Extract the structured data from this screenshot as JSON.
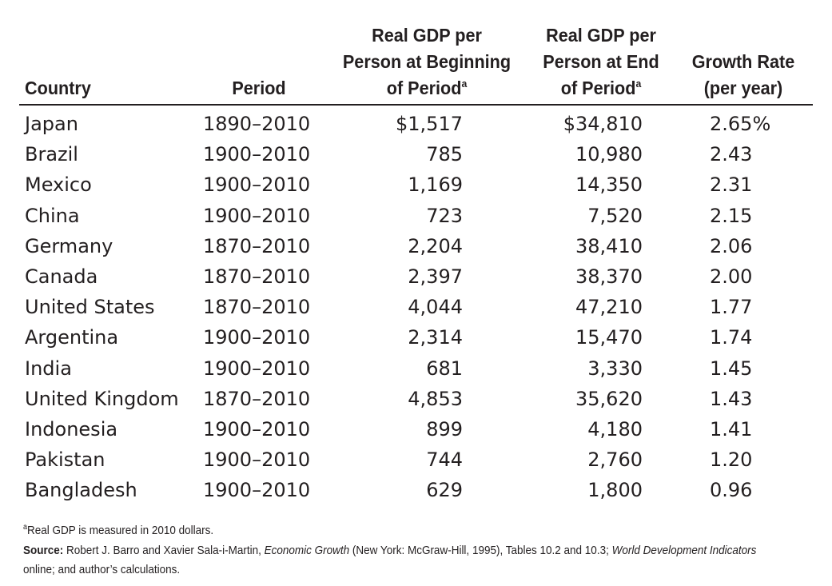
{
  "header": {
    "country": "Country",
    "period": "Period",
    "begin_line1": "Real GDP per",
    "begin_line2": "Person at Beginning",
    "begin_line3": "of Period",
    "begin_mark": "a",
    "end_line1": "Real GDP per",
    "end_line2": "Person at End",
    "end_line3": "of Period",
    "end_mark": "a",
    "rate_line1": "Growth Rate",
    "rate_line2": "(per year)"
  },
  "rows": [
    {
      "country": "Japan",
      "period": "1890–2010",
      "begin": "$1,517",
      "end": "$34,810",
      "rate": "2.65%"
    },
    {
      "country": "Brazil",
      "period": "1900–2010",
      "begin": "785",
      "end": "10,980",
      "rate": "2.43"
    },
    {
      "country": "Mexico",
      "period": "1900–2010",
      "begin": "1,169",
      "end": "14,350",
      "rate": "2.31"
    },
    {
      "country": "China",
      "period": "1900–2010",
      "begin": "723",
      "end": "7,520",
      "rate": "2.15"
    },
    {
      "country": "Germany",
      "period": "1870–2010",
      "begin": "2,204",
      "end": "38,410",
      "rate": "2.06"
    },
    {
      "country": "Canada",
      "period": "1870–2010",
      "begin": "2,397",
      "end": "38,370",
      "rate": "2.00"
    },
    {
      "country": "United States",
      "period": "1870–2010",
      "begin": "4,044",
      "end": "47,210",
      "rate": "1.77"
    },
    {
      "country": "Argentina",
      "period": "1900–2010",
      "begin": "2,314",
      "end": "15,470",
      "rate": "1.74"
    },
    {
      "country": "India",
      "period": "1900–2010",
      "begin": "681",
      "end": "3,330",
      "rate": "1.45"
    },
    {
      "country": "United Kingdom",
      "period": "1870–2010",
      "begin": "4,853",
      "end": "35,620",
      "rate": "1.43"
    },
    {
      "country": "Indonesia",
      "period": "1900–2010",
      "begin": "899",
      "end": "4,180",
      "rate": "1.41"
    },
    {
      "country": "Pakistan",
      "period": "1900–2010",
      "begin": "744",
      "end": "2,760",
      "rate": "1.20"
    },
    {
      "country": "Bangladesh",
      "period": "1900–2010",
      "begin": "629",
      "end": "1,800",
      "rate": "0.96"
    }
  ],
  "footnote": {
    "mark": "a",
    "text": "Real GDP is measured in 2010 dollars."
  },
  "source": {
    "label": "Source:",
    "part1": " Robert J. Barro and Xavier Sala-i-Martin, ",
    "book": "Economic Growth",
    "part2": " (New York: McGraw-Hill, 1995), Tables 10.2 and 10.3; ",
    "wdi": "World Development Indicators",
    "line2": "online; and author’s calculations."
  }
}
